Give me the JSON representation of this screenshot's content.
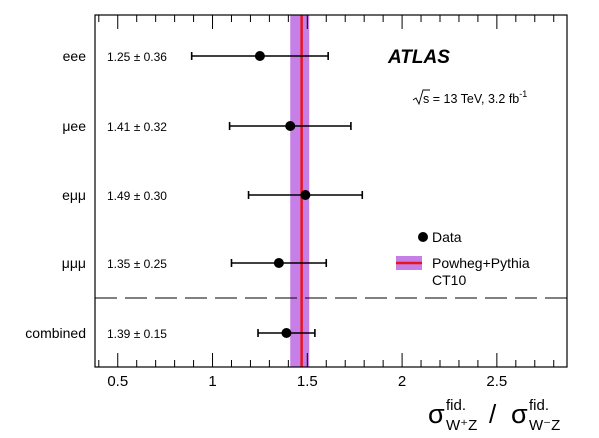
{
  "chart_data": {
    "type": "scatter",
    "title": "",
    "xlim": [
      0.38,
      2.87
    ],
    "x_ticks": [
      {
        "value": 0.5,
        "label": "0.5"
      },
      {
        "value": 1,
        "label": "1"
      },
      {
        "value": 1.5,
        "label": "1.5"
      },
      {
        "value": 2,
        "label": "2"
      },
      {
        "value": 2.5,
        "label": "2.5"
      }
    ],
    "xlabel": {
      "sym1": "σ",
      "sup1": "fid.",
      "sub1": "W⁺Z",
      "sep": "/",
      "sym2": "σ",
      "sup2": "fid.",
      "sub2": "W⁻Z"
    },
    "grid": false,
    "legend_position": "middle-right",
    "categories": [
      "eee",
      "μee",
      "eμμ",
      "μμμ",
      "combined"
    ],
    "series": [
      {
        "name": "Data",
        "points": [
          {
            "channel": "eee",
            "value": 1.25,
            "error": 0.36,
            "label": "1.25 ± 0.36"
          },
          {
            "channel": "μee",
            "value": 1.41,
            "error": 0.32,
            "label": "1.41 ± 0.32"
          },
          {
            "channel": "eμμ",
            "value": 1.49,
            "error": 0.3,
            "label": "1.49 ± 0.30"
          },
          {
            "channel": "μμμ",
            "value": 1.35,
            "error": 0.25,
            "label": "1.35 ± 0.25"
          },
          {
            "channel": "combined",
            "value": 1.39,
            "error": 0.15,
            "label": "1.39 ± 0.15"
          }
        ]
      }
    ],
    "prediction": {
      "name_line1": "Powheg+Pythia",
      "name_line2": "CT10",
      "central": 1.47,
      "band": [
        1.41,
        1.51
      ],
      "line_color": "#e8141e",
      "band_color": "#c77fe8"
    },
    "annotations": {
      "experiment": "ATLAS",
      "energy_prefix": "s",
      "energy_text": " = 13 TeV, 3.2 fb",
      "energy_sup": "-1"
    }
  }
}
